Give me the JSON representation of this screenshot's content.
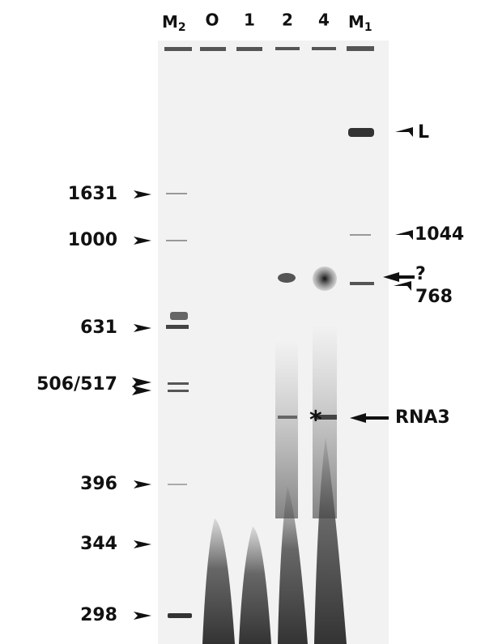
{
  "lanes": [
    {
      "name": "M",
      "subscript": "2"
    },
    {
      "name": "O"
    },
    {
      "name": "1"
    },
    {
      "name": "2"
    },
    {
      "name": "4"
    },
    {
      "name": "M",
      "subscript": "1"
    }
  ],
  "size_markers": [
    "1631",
    "1000",
    "631",
    "506/517",
    "396",
    "344",
    "298"
  ],
  "right_labels": [
    "L",
    "1044",
    "?",
    "768",
    "RNA3"
  ],
  "asterisk": "*"
}
